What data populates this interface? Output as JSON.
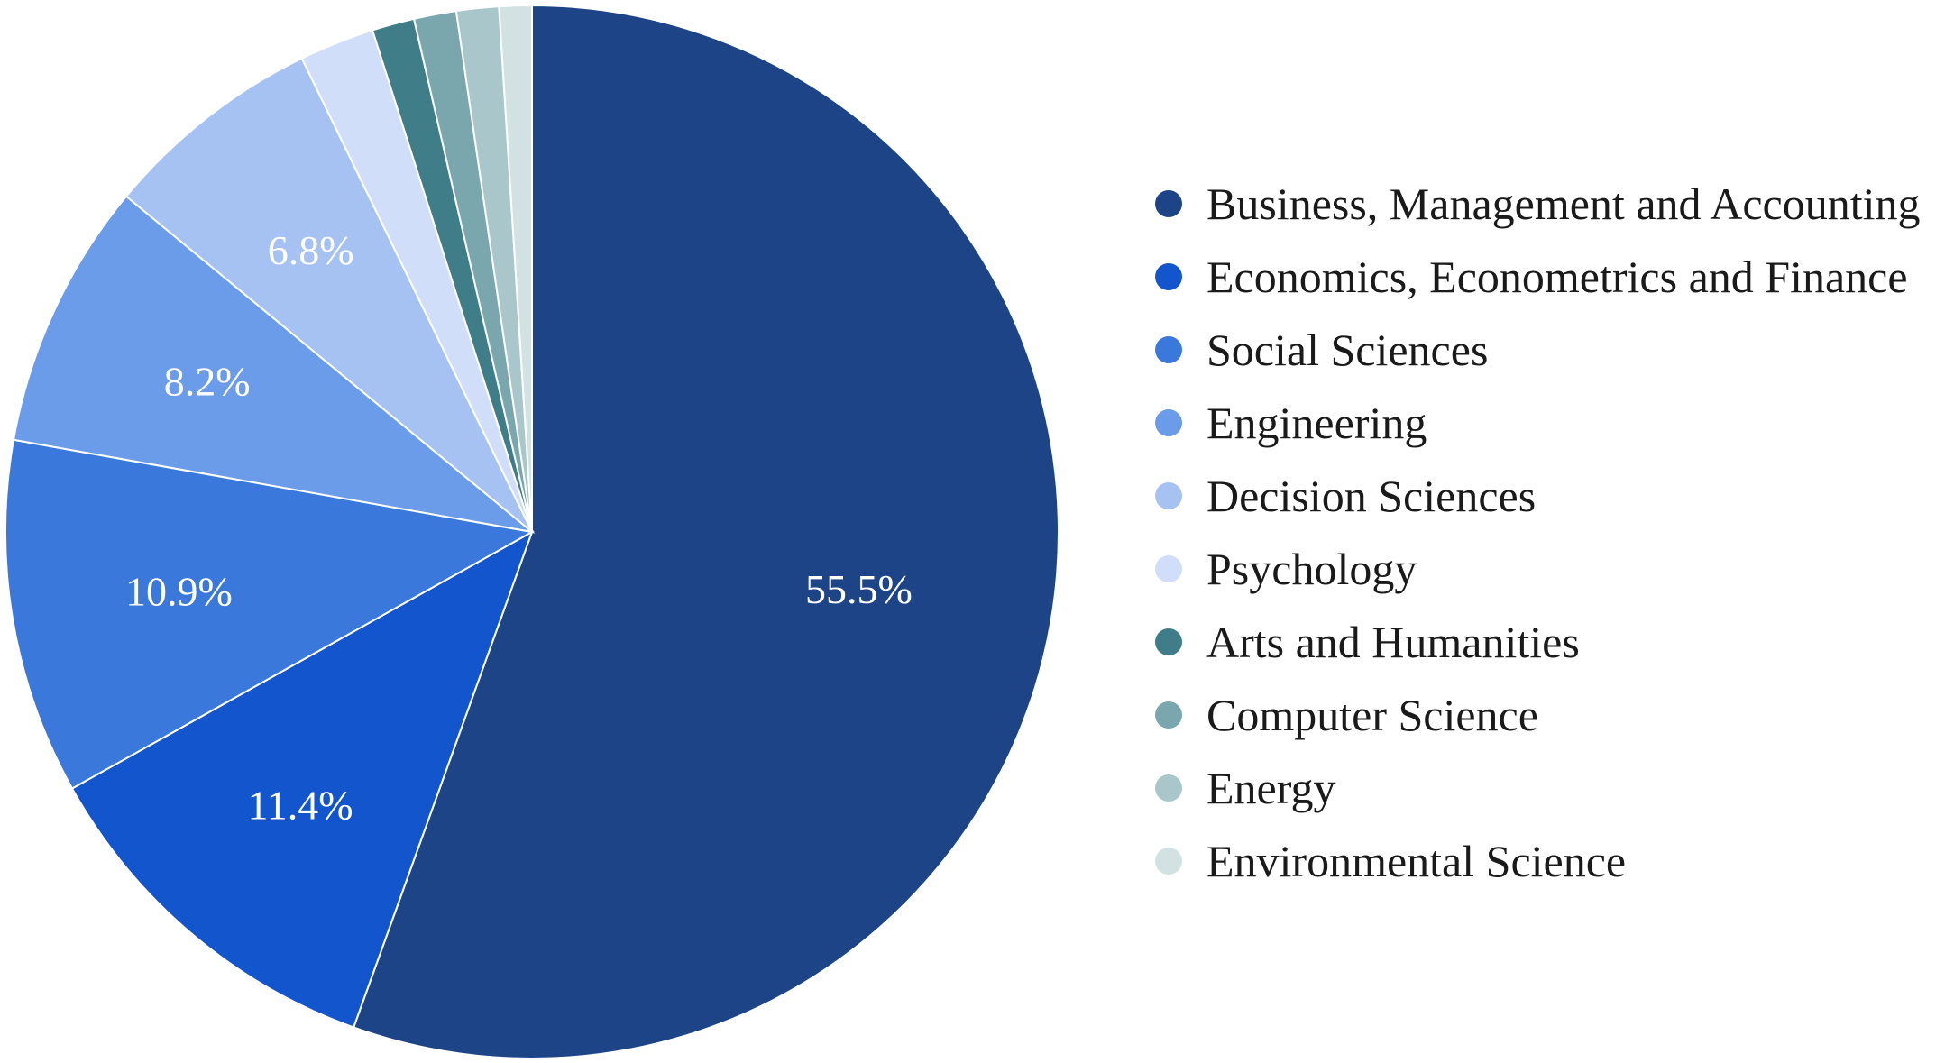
{
  "chart_data": {
    "type": "pie",
    "title": "",
    "categories": [
      "Business, Management and Accounting",
      "Economics, Econometrics and Finance",
      "Social Sciences",
      "Engineering",
      "Decision Sciences",
      "Psychology",
      "Arts and Humanities",
      "Computer Science",
      "Energy",
      "Environmental Science"
    ],
    "values": [
      55.5,
      11.4,
      10.9,
      8.2,
      6.8,
      2.3,
      1.3,
      1.3,
      1.3,
      1.0
    ],
    "labels": [
      "55.5%",
      "11.4%",
      "10.9%",
      "8.2%",
      "6.8%",
      "",
      "",
      "",
      "",
      ""
    ],
    "colors": [
      "#1e4488",
      "#1355cc",
      "#3b78db",
      "#6b9cea",
      "#a6c2f3",
      "#d0def9",
      "#3f7d88",
      "#7aa7ae",
      "#a9c7cb",
      "#d2e2e3"
    ],
    "start_angle_deg": 0,
    "direction": "clockwise",
    "legend": {
      "position": "right",
      "marker": "circle"
    }
  }
}
